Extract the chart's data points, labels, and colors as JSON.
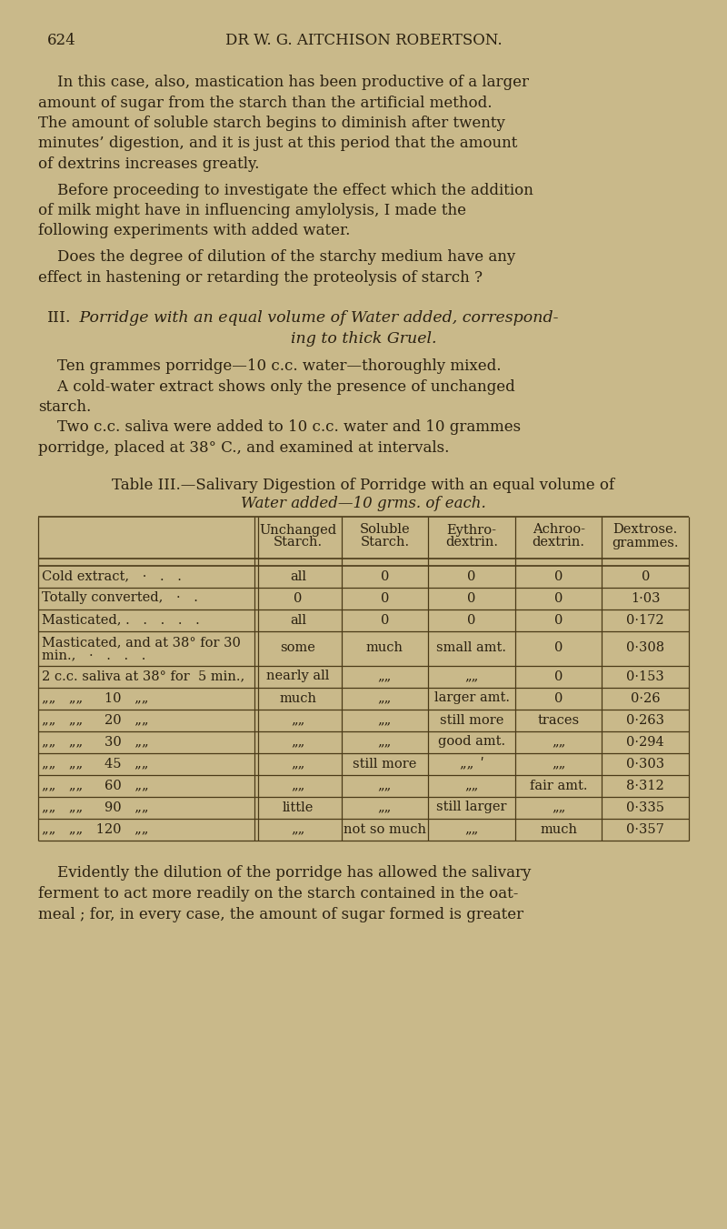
{
  "background_color": "#c9b98a",
  "text_color": "#2a2010",
  "table_line_color": "#4a3a18",
  "page_number": "624",
  "header": "DR W. G. AITCHISON ROBERTSON.",
  "para1_lines": [
    "    In this case, also, mastication has been productive of a larger",
    "amount of sugar from the starch than the artificial method.",
    "The amount of soluble starch begins to diminish after twenty",
    "minutes’ digestion, and it is just at this period that the amount",
    "of dextrins increases greatly."
  ],
  "para2_lines": [
    "    Before proceeding to investigate the effect which the addition",
    "of milk might have in influencing amylolysis, I made the",
    "following experiments with added water."
  ],
  "para3_lines": [
    "    Does the degree of dilution of the starchy medium have any",
    "effect in hastening or retarding the proteolysis of starch ?"
  ],
  "section_line1_roman": "III.",
  "section_line1_italic": " Porridge with an equal volume of Water added, correspond-",
  "section_line2_italic": "ing to thick Gruel.",
  "para4": "    Ten grammes porridge—10 c.c. water—thoroughly mixed.",
  "para5_lines": [
    "    A cold-water extract shows only the presence of unchanged",
    "starch."
  ],
  "para6_lines": [
    "    Two c.c. saliva were added to 10 c.c. water and 10 grammes",
    "porridge, placed at 38° C., and examined at intervals."
  ],
  "table_caption_line1_roman": "Table III.",
  "table_caption_line1_italic": "—Salivary Digestion of Porridge with an equal volume of",
  "table_caption_line2_italic": "Water added—10 grms. of each.",
  "col_headers": [
    [
      "Unchanged",
      "Starch."
    ],
    [
      "Soluble",
      "Starch."
    ],
    [
      "Eythro-",
      "dextrin."
    ],
    [
      "Achroo-",
      "dextrin."
    ],
    [
      "Dextrose.",
      "grammes."
    ]
  ],
  "table_rows": [
    {
      "label": [
        "Cold extract, · . ."
      ],
      "cols": [
        "all",
        "0",
        "0",
        "0",
        "0"
      ]
    },
    {
      "label": [
        "Totally converted, · ."
      ],
      "cols": [
        "0",
        "0",
        "0",
        "0",
        "1·03"
      ]
    },
    {
      "label": [
        "Masticated, . . . . ."
      ],
      "cols": [
        "all",
        "0",
        "0",
        "0",
        "0·172"
      ]
    },
    {
      "label": [
        "Masticated, and at 38° for 30",
        "min., · . . ."
      ],
      "cols": [
        "some",
        "much",
        "small amt.",
        "0",
        "0·308"
      ]
    },
    {
      "label": [
        "2 c.c. saliva at 38° for  5 min.,"
      ],
      "cols": [
        "nearly all",
        "„„",
        "„„",
        "0",
        "0·153"
      ]
    },
    {
      "label": [
        "„„ „„   10 „„"
      ],
      "cols": [
        "much",
        "„„",
        "larger amt.",
        "0",
        "0·26"
      ]
    },
    {
      "label": [
        "„„ „„   20 „„"
      ],
      "cols": [
        "„„",
        "„„",
        "still more",
        "traces",
        "0·263"
      ]
    },
    {
      "label": [
        "„„ „„   30 „„"
      ],
      "cols": [
        "„„",
        "„„",
        "good amt.",
        "„„",
        "0·294"
      ]
    },
    {
      "label": [
        "„„ „„   45 „„"
      ],
      "cols": [
        "„„",
        "still more",
        "„„ ʹ",
        "„„",
        "0·303"
      ]
    },
    {
      "label": [
        "„„ „„   60 „„"
      ],
      "cols": [
        "„„",
        "„„",
        "„„",
        "fair amt.",
        "8·312"
      ]
    },
    {
      "label": [
        "„„ „„   90 „„"
      ],
      "cols": [
        "little",
        "„„",
        "still larger",
        "„„",
        "0·335"
      ]
    },
    {
      "label": [
        "„„ „„ 120 „„"
      ],
      "cols": [
        "„„",
        "not so much",
        "„„",
        "much",
        "0·357"
      ]
    }
  ],
  "closing_lines": [
    "    Evidently the dilution of the porridge has allowed the salivary",
    "ferment to act more readily on the starch contained in the oat-",
    "meal ; for, in every case, the amount of sugar formed is greater"
  ]
}
